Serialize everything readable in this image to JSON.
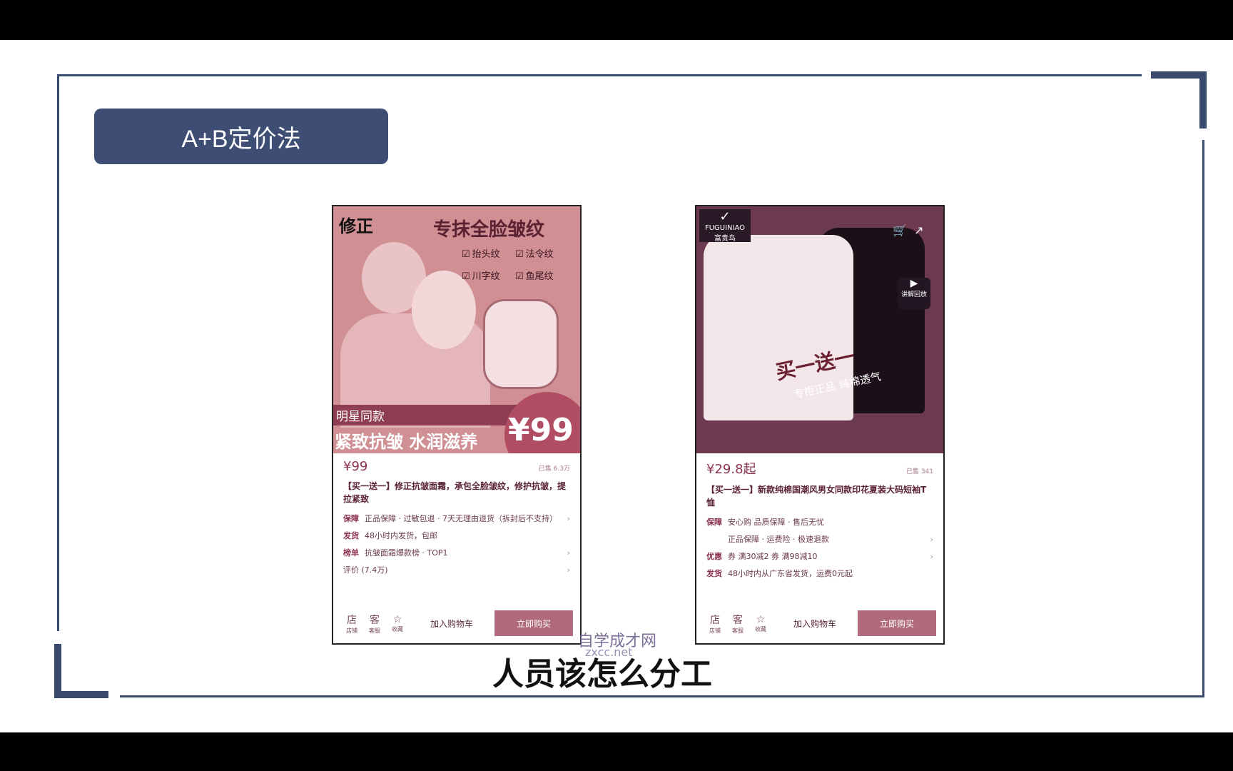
{
  "slide": {
    "title": "A+B定价法"
  },
  "subtitle": "人员该怎么分工",
  "watermark": {
    "line1": "自学成才网",
    "line2": "zxcc.net"
  },
  "product_a": {
    "brand": "修正",
    "headline": "专抹全脸皱纹",
    "tags": [
      "抬头纹",
      "法令纹",
      "川字纹",
      "鱼尾纹"
    ],
    "stripe": "明星同款",
    "slogan": "紧致抗皱 水润滋养",
    "hero_price": "¥99",
    "price": "¥99",
    "sold": "已售 6.3万",
    "title": "【买一送一】修正抗皱面霜，承包全脸皱纹，修护抗皱，提拉紧致",
    "guarantee_label": "保障",
    "guarantee": "正品保障 · 过敏包退 · 7天无理由退货（拆封后不支持）",
    "ship_label": "发货",
    "ship": "48小时内发货，包邮",
    "rank_label": "榜单",
    "rank": "抗皱面霜爆款榜 · TOP1",
    "review": "评价 (7.4万)",
    "nav": [
      {
        "icon": "店",
        "label": "店铺"
      },
      {
        "icon": "客",
        "label": "客服"
      },
      {
        "icon": "☆",
        "label": "收藏"
      }
    ],
    "add_cart": "加入购物车",
    "buy": "立即购买",
    "arrow": "›"
  },
  "product_b": {
    "brand": "FUGUINIAO",
    "brand_cn": "富贵鸟",
    "shirt_text": "买一送一",
    "shirt_sub": "专柜正品 纯棉透气",
    "replay": "讲解回放",
    "price": "¥29.8起",
    "sold": "已售 341",
    "title": "【买一送一】新款纯棉国潮风男女同款印花夏装大码短袖T恤",
    "guarantee_label": "保障",
    "guarantee": "安心购 品质保障 · 售后无忧",
    "guarantee2": "正品保障 · 运费险 · 极速退款",
    "promo_label": "优惠",
    "promo": "券 满30减2  券 满98减10",
    "ship_label": "发货",
    "ship": "48小时内从广东省发货，运费0元起",
    "nav": [
      {
        "icon": "店",
        "label": "店铺"
      },
      {
        "icon": "客",
        "label": "客服"
      },
      {
        "icon": "☆",
        "label": "收藏"
      }
    ],
    "add_cart": "加入购物车",
    "buy": "立即购买",
    "arrow": "›"
  }
}
